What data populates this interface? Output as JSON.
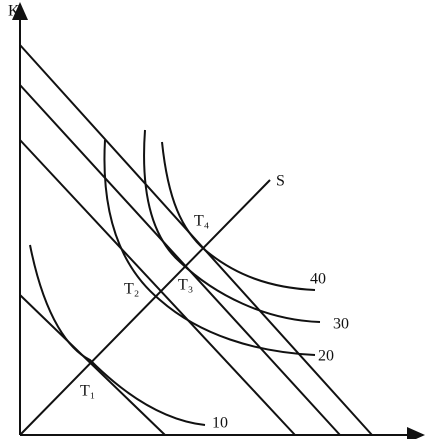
{
  "axes": {
    "y_label": "K"
  },
  "expansion_path": {
    "label": "S"
  },
  "points": [
    {
      "label": "T₁"
    },
    {
      "label": "T₂"
    },
    {
      "label": "T₃"
    },
    {
      "label": "T₄"
    }
  ],
  "isoquants": [
    {
      "label": "10"
    },
    {
      "label": "20"
    },
    {
      "label": "30"
    },
    {
      "label": "40"
    }
  ]
}
